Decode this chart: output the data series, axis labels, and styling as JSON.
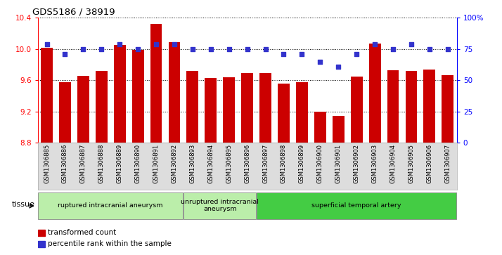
{
  "title": "GDS5186 / 38919",
  "samples": [
    "GSM1306885",
    "GSM1306886",
    "GSM1306887",
    "GSM1306888",
    "GSM1306889",
    "GSM1306890",
    "GSM1306891",
    "GSM1306892",
    "GSM1306893",
    "GSM1306894",
    "GSM1306895",
    "GSM1306896",
    "GSM1306897",
    "GSM1306898",
    "GSM1306899",
    "GSM1306900",
    "GSM1306901",
    "GSM1306902",
    "GSM1306903",
    "GSM1306904",
    "GSM1306905",
    "GSM1306906",
    "GSM1306907"
  ],
  "bar_values": [
    10.02,
    9.58,
    9.66,
    9.72,
    10.05,
    9.99,
    10.32,
    10.09,
    9.72,
    9.63,
    9.64,
    9.69,
    9.69,
    9.56,
    9.58,
    9.2,
    9.14,
    9.65,
    10.07,
    9.73,
    9.72,
    9.74,
    9.67
  ],
  "dot_values": [
    79,
    71,
    75,
    75,
    79,
    75,
    79,
    79,
    75,
    75,
    75,
    75,
    75,
    71,
    71,
    65,
    61,
    71,
    79,
    75,
    79,
    75,
    75
  ],
  "ylim_left": [
    8.8,
    10.4
  ],
  "ylim_right": [
    0,
    100
  ],
  "yticks_left": [
    8.8,
    9.2,
    9.6,
    10.0,
    10.4
  ],
  "yticks_right": [
    0,
    25,
    50,
    75,
    100
  ],
  "ytick_labels_right": [
    "0",
    "25",
    "50",
    "75",
    "100%"
  ],
  "bar_color": "#cc0000",
  "dot_color": "#3333cc",
  "group_boundaries": [
    {
      "start": 0,
      "end": 7,
      "label": "ruptured intracranial aneurysm",
      "color": "#bbeeaa"
    },
    {
      "start": 8,
      "end": 11,
      "label": "unruptured intracranial\naneurysm",
      "color": "#bbeeaa"
    },
    {
      "start": 12,
      "end": 22,
      "label": "superficial temporal artery",
      "color": "#44cc44"
    }
  ],
  "tissue_label": "tissue",
  "legend_bar_label": "transformed count",
  "legend_dot_label": "percentile rank within the sample",
  "background_color": "#dddddd",
  "plot_bg_color": "#ffffff"
}
